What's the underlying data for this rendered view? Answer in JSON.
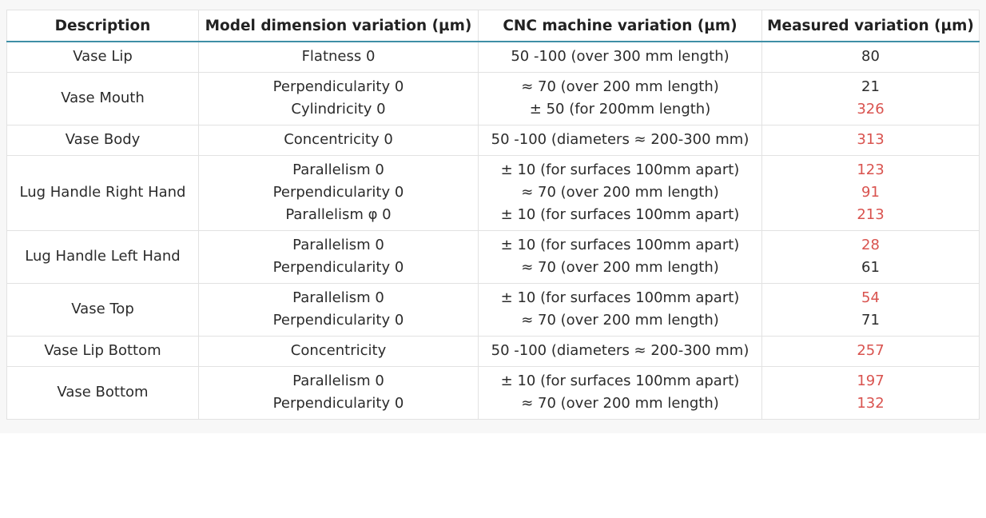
{
  "table": {
    "headers": [
      "Description",
      "Model dimension variation (µm)",
      "CNC machine variation (µm)",
      "Measured variation (µm)"
    ],
    "rows": [
      {
        "description": "Vase Lip",
        "model": [
          "Flatness 0"
        ],
        "cnc": [
          "50 -100 (over 300 mm length)"
        ],
        "measured": [
          {
            "value": "80",
            "highlight": false
          }
        ]
      },
      {
        "description": "Vase Mouth",
        "model": [
          "Perpendicularity 0",
          "Cylindricity 0"
        ],
        "cnc": [
          "≈ 70 (over 200 mm length)",
          "± 50 (for 200mm length)"
        ],
        "measured": [
          {
            "value": "21",
            "highlight": false
          },
          {
            "value": "326",
            "highlight": true
          }
        ]
      },
      {
        "description": "Vase Body",
        "model": [
          "Concentricity 0"
        ],
        "cnc": [
          "50 -100 (diameters ≈ 200-300 mm)"
        ],
        "measured": [
          {
            "value": "313",
            "highlight": true
          }
        ]
      },
      {
        "description": "Lug Handle Right Hand",
        "model": [
          "Parallelism 0",
          "Perpendicularity 0",
          "Parallelism φ 0"
        ],
        "cnc": [
          "± 10 (for surfaces 100mm apart)",
          "≈ 70 (over 200 mm length)",
          "± 10 (for surfaces 100mm apart)"
        ],
        "measured": [
          {
            "value": "123",
            "highlight": true
          },
          {
            "value": "91",
            "highlight": true
          },
          {
            "value": "213",
            "highlight": true
          }
        ]
      },
      {
        "description": "Lug Handle Left Hand",
        "model": [
          "Parallelism 0",
          "Perpendicularity 0"
        ],
        "cnc": [
          "± 10 (for surfaces 100mm apart)",
          "≈ 70 (over 200 mm length)"
        ],
        "measured": [
          {
            "value": "28",
            "highlight": true
          },
          {
            "value": "61",
            "highlight": false
          }
        ]
      },
      {
        "description": "Vase Top",
        "model": [
          "Parallelism 0",
          "Perpendicularity 0"
        ],
        "cnc": [
          "± 10 (for surfaces 100mm apart)",
          "≈ 70 (over 200 mm length)"
        ],
        "measured": [
          {
            "value": "54",
            "highlight": true
          },
          {
            "value": "71",
            "highlight": false
          }
        ]
      },
      {
        "description": "Vase Lip Bottom",
        "model": [
          "Concentricity"
        ],
        "cnc": [
          "50 -100 (diameters ≈ 200-300 mm)"
        ],
        "measured": [
          {
            "value": "257",
            "highlight": true
          }
        ]
      },
      {
        "description": "Vase Bottom",
        "model": [
          "Parallelism 0",
          "Perpendicularity 0"
        ],
        "cnc": [
          "± 10 (for surfaces 100mm apart)",
          "≈ 70 (over 200 mm length)"
        ],
        "measured": [
          {
            "value": "197",
            "highlight": true
          },
          {
            "value": "132",
            "highlight": true
          }
        ]
      }
    ]
  },
  "colors": {
    "header_rule": "#3f8fa6",
    "highlight": "#d9534f",
    "grid": "#e2e2e2",
    "text": "#2b2b2b"
  }
}
